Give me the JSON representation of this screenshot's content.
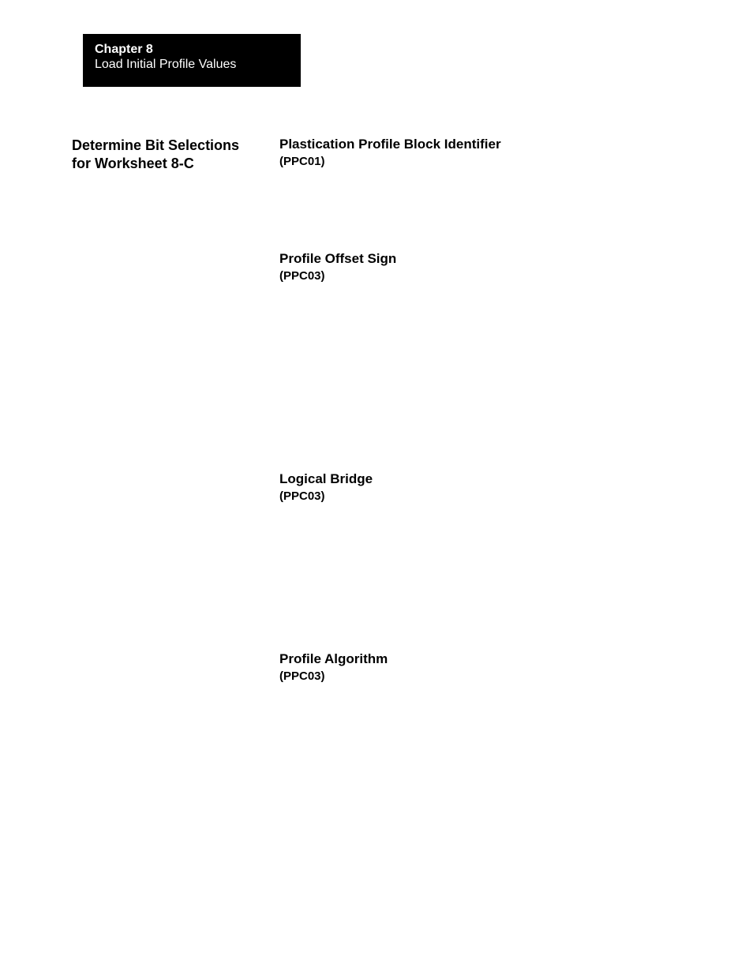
{
  "header": {
    "chapter": "Chapter  8",
    "subtitle": "Load Initial Profile Values"
  },
  "leftHeading": {
    "line1": "Determine Bit Selections",
    "line2": "for Worksheet 8-C"
  },
  "sections": [
    {
      "title": "Plastication Profile Block Identifier",
      "code": "(PPC01)"
    },
    {
      "title": "Profile Offset Sign",
      "code": "(PPC03)"
    },
    {
      "title": "Logical Bridge",
      "code": "(PPC03)"
    },
    {
      "title": "Profile Algorithm",
      "code": "(PPC03)"
    }
  ],
  "colors": {
    "background": "#ffffff",
    "headerBg": "#000000",
    "headerText": "#ffffff",
    "bodyText": "#000000"
  },
  "typography": {
    "fontFamily": "Arial, Helvetica, sans-serif",
    "chapterTitleSize": 16,
    "leftHeadingSize": 18,
    "sectionTitleSize": 17,
    "sectionCodeSize": 15
  }
}
